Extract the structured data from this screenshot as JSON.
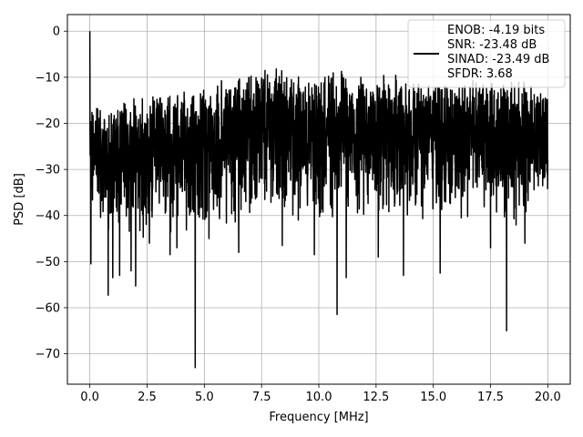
{
  "chart_data": {
    "type": "line",
    "xlabel": "Frequency [MHz]",
    "ylabel": "PSD [dB]",
    "xlim": [
      -0.98,
      20.98
    ],
    "ylim": [
      -76.6,
      3.6
    ],
    "x_ticks": [
      0.0,
      2.5,
      5.0,
      7.5,
      10.0,
      12.5,
      15.0,
      17.5,
      20.0
    ],
    "x_tick_labels": [
      "0.0",
      "2.5",
      "5.0",
      "7.5",
      "10.0",
      "12.5",
      "15.0",
      "17.5",
      "20.0"
    ],
    "y_ticks": [
      0,
      -10,
      -20,
      -30,
      -40,
      -50,
      -60,
      -70
    ],
    "y_tick_labels": [
      "0",
      "−10",
      "−20",
      "−30",
      "−40",
      "−50",
      "−60",
      "−70"
    ],
    "grid": true,
    "legend_position": "top-right",
    "legend_entries": [
      "ENOB: -4.19 bits",
      "SNR: -23.48 dB",
      "SINAD: -23.49 dB",
      "SFDR: 3.68"
    ],
    "series": [
      {
        "color": "#000000",
        "x_range": [
          0,
          20
        ],
        "envelope_top_x": [
          0.0,
          0.1,
          0.5,
          1.0,
          2.0,
          3.0,
          4.0,
          5.0,
          6.0,
          6.3,
          7.0,
          8.0,
          9.0,
          10.0,
          11.0,
          12.0,
          13.0,
          14.0,
          15.0,
          16.0,
          17.0,
          18.0,
          19.0,
          20.0
        ],
        "envelope_top_y": [
          -15,
          -14,
          -17,
          -16,
          -14,
          -14,
          -13,
          -12,
          -10,
          -8,
          -9,
          -8,
          -9,
          -9,
          -8,
          -10,
          -9,
          -10,
          -11,
          -12,
          -10,
          -11,
          -10,
          -14
        ],
        "envelope_bottom_x": [
          0.0,
          0.1,
          0.5,
          1.0,
          2.0,
          3.0,
          4.0,
          5.0,
          6.0,
          7.0,
          8.0,
          9.0,
          10.0,
          11.0,
          12.0,
          13.0,
          14.0,
          15.0,
          16.0,
          17.0,
          18.0,
          19.0,
          20.0
        ],
        "envelope_bottom_y": [
          -30,
          -40,
          -45,
          -46,
          -46,
          -45,
          -45,
          -45,
          -45,
          -42,
          -41,
          -42,
          -42,
          -43,
          -43,
          -42,
          -42,
          -43,
          -42,
          -41,
          -43,
          -44,
          -38
        ],
        "spikes": [
          {
            "x": 0.0,
            "y": 0.0
          },
          {
            "x": 0.05,
            "y": -50.5
          },
          {
            "x": 0.8,
            "y": -57.3
          },
          {
            "x": 1.0,
            "y": -53.5
          },
          {
            "x": 1.3,
            "y": -53.0
          },
          {
            "x": 1.8,
            "y": -52.0
          },
          {
            "x": 2.0,
            "y": -55.3
          },
          {
            "x": 2.6,
            "y": -46.0
          },
          {
            "x": 3.5,
            "y": -48.5
          },
          {
            "x": 3.8,
            "y": -47.0
          },
          {
            "x": 4.6,
            "y": -73.0
          },
          {
            "x": 5.2,
            "y": -45.0
          },
          {
            "x": 6.5,
            "y": -48.0
          },
          {
            "x": 8.4,
            "y": -46.5
          },
          {
            "x": 9.8,
            "y": -48.5
          },
          {
            "x": 10.8,
            "y": -61.5
          },
          {
            "x": 11.2,
            "y": -53.5
          },
          {
            "x": 12.6,
            "y": -49.0
          },
          {
            "x": 13.7,
            "y": -53.0
          },
          {
            "x": 15.3,
            "y": -52.5
          },
          {
            "x": 17.5,
            "y": -47.0
          },
          {
            "x": 18.2,
            "y": -65.0
          },
          {
            "x": 19.0,
            "y": -46.0
          }
        ]
      }
    ]
  }
}
